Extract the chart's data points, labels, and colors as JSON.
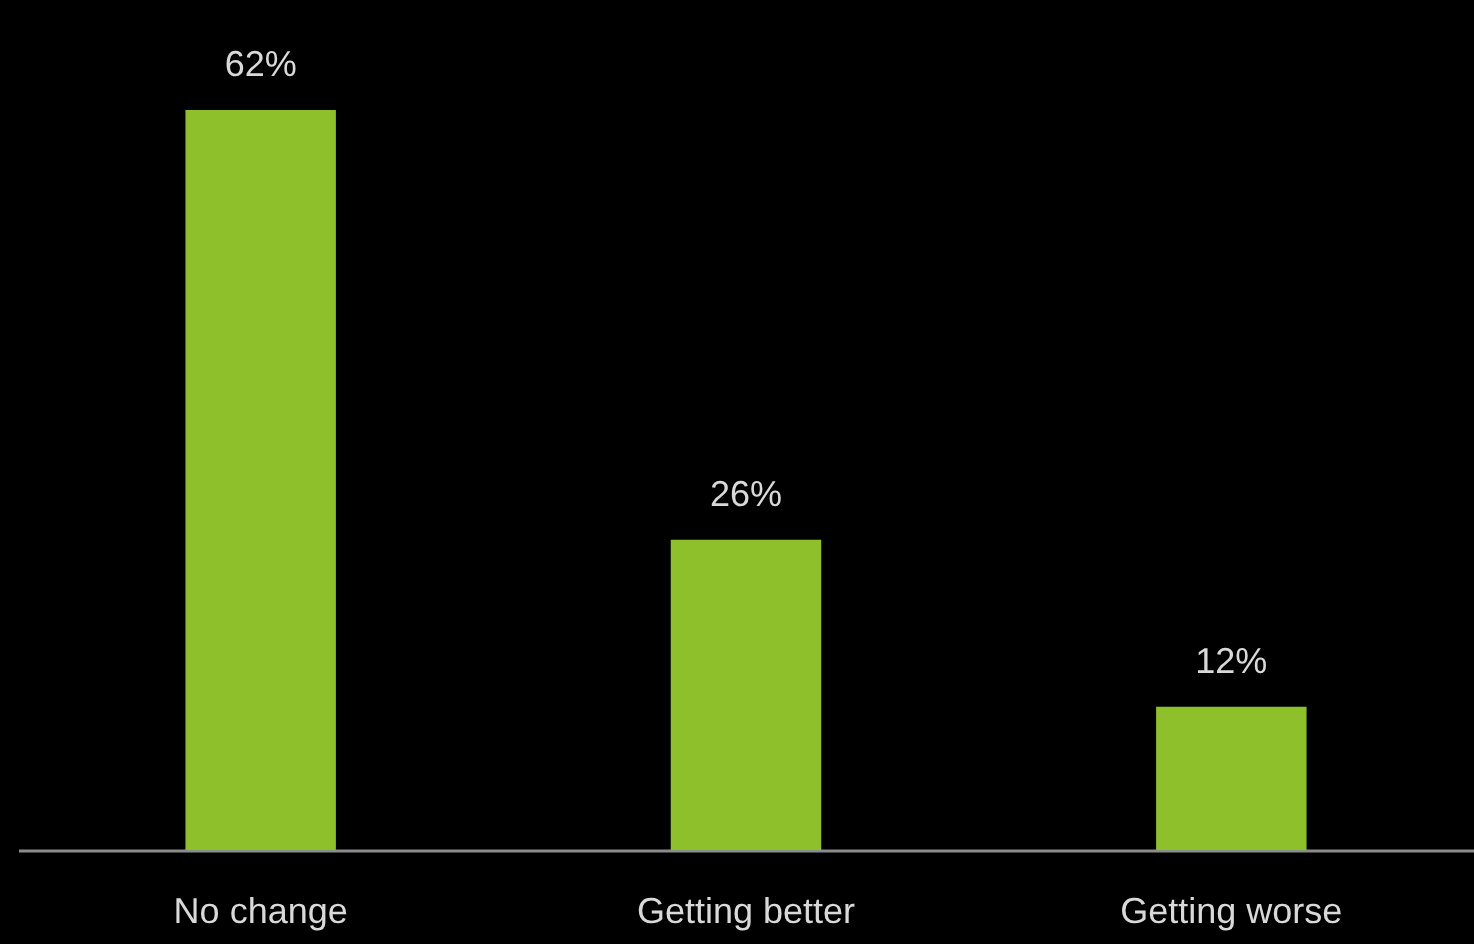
{
  "chart_data": {
    "type": "bar",
    "categories": [
      "No change",
      "Getting better",
      "Getting worse"
    ],
    "values": [
      62,
      26,
      12
    ],
    "value_labels": [
      "62%",
      "26%",
      "12%"
    ],
    "color": "#8dc02b",
    "grid": false,
    "tick_labels": "x"
  }
}
